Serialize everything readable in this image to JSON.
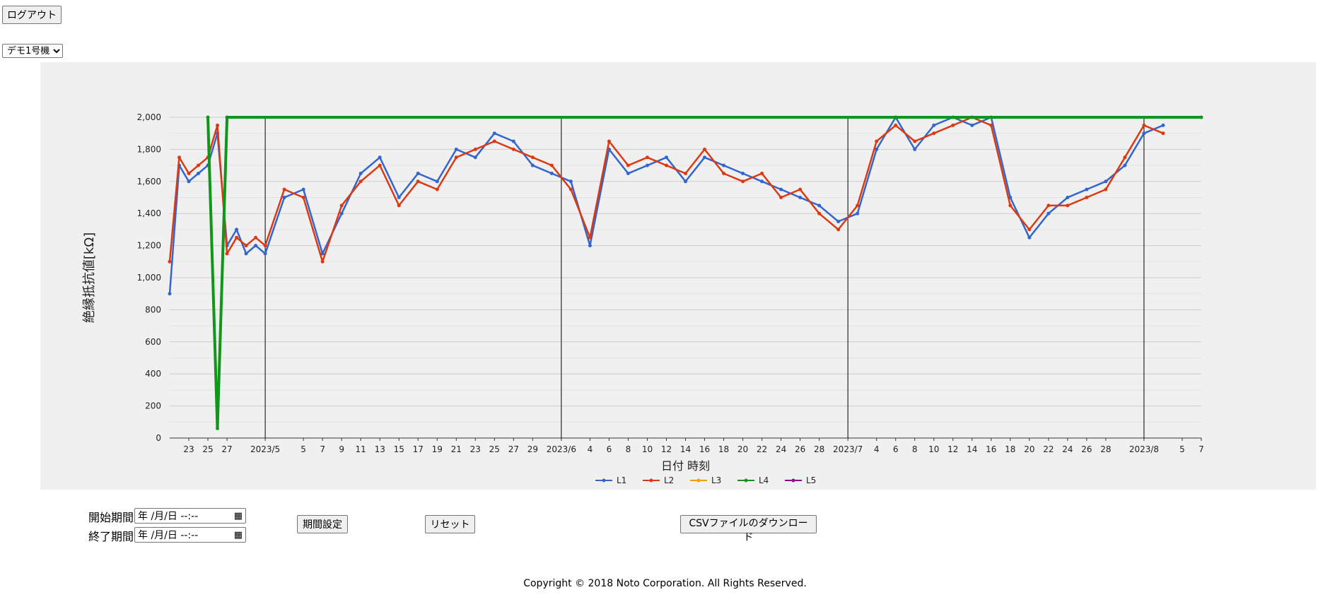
{
  "header": {
    "logout_label": "ログアウト"
  },
  "machine_select": {
    "selected": "デモ1号機"
  },
  "controls": {
    "start_label": "開始期間",
    "end_label": "終了期間",
    "datetime_placeholder": "年 /月/日 --:--",
    "set_period_label": "期間設定",
    "reset_label": "リセット",
    "csv_download_label": "CSVファイルのダウンロード"
  },
  "footer": {
    "copyright": "Copyright © 2018 Noto Corporation. All Rights Reserved."
  },
  "colors": {
    "L1": "#3366cc",
    "L2": "#dc3912",
    "L3": "#ff9900",
    "L4": "#109618",
    "L5": "#990099",
    "panel": "#f0f0f0"
  },
  "chart_data": {
    "type": "line",
    "xlabel": "日付 時刻",
    "ylabel": "絶縁抵抗値[kΩ]",
    "ylim": [
      0,
      2000
    ],
    "y_ticks": [
      "0",
      "200",
      "400",
      "600",
      "800",
      "1,000",
      "1,200",
      "1,400",
      "1,600",
      "1,800",
      "2,000"
    ],
    "x_range": [
      "2023-04-21",
      "2023-08-07"
    ],
    "x_tick_labels": [
      {
        "date": "2023-04-23",
        "label": "23"
      },
      {
        "date": "2023-04-25",
        "label": "25"
      },
      {
        "date": "2023-04-27",
        "label": "27"
      },
      {
        "date": "2023-05-01",
        "label": "2023/5"
      },
      {
        "date": "2023-05-05",
        "label": "5"
      },
      {
        "date": "2023-05-07",
        "label": "7"
      },
      {
        "date": "2023-05-09",
        "label": "9"
      },
      {
        "date": "2023-05-11",
        "label": "11"
      },
      {
        "date": "2023-05-13",
        "label": "13"
      },
      {
        "date": "2023-05-15",
        "label": "15"
      },
      {
        "date": "2023-05-17",
        "label": "17"
      },
      {
        "date": "2023-05-19",
        "label": "19"
      },
      {
        "date": "2023-05-21",
        "label": "21"
      },
      {
        "date": "2023-05-23",
        "label": "23"
      },
      {
        "date": "2023-05-25",
        "label": "25"
      },
      {
        "date": "2023-05-27",
        "label": "27"
      },
      {
        "date": "2023-05-29",
        "label": "29"
      },
      {
        "date": "2023-06-01",
        "label": "2023/6"
      },
      {
        "date": "2023-06-04",
        "label": "4"
      },
      {
        "date": "2023-06-06",
        "label": "6"
      },
      {
        "date": "2023-06-08",
        "label": "8"
      },
      {
        "date": "2023-06-10",
        "label": "10"
      },
      {
        "date": "2023-06-12",
        "label": "12"
      },
      {
        "date": "2023-06-14",
        "label": "14"
      },
      {
        "date": "2023-06-16",
        "label": "16"
      },
      {
        "date": "2023-06-18",
        "label": "18"
      },
      {
        "date": "2023-06-20",
        "label": "20"
      },
      {
        "date": "2023-06-22",
        "label": "22"
      },
      {
        "date": "2023-06-24",
        "label": "24"
      },
      {
        "date": "2023-06-26",
        "label": "26"
      },
      {
        "date": "2023-06-28",
        "label": "28"
      },
      {
        "date": "2023-07-01",
        "label": "2023/7"
      },
      {
        "date": "2023-07-04",
        "label": "4"
      },
      {
        "date": "2023-07-06",
        "label": "6"
      },
      {
        "date": "2023-07-08",
        "label": "8"
      },
      {
        "date": "2023-07-10",
        "label": "10"
      },
      {
        "date": "2023-07-12",
        "label": "12"
      },
      {
        "date": "2023-07-14",
        "label": "14"
      },
      {
        "date": "2023-07-16",
        "label": "16"
      },
      {
        "date": "2023-07-18",
        "label": "18"
      },
      {
        "date": "2023-07-20",
        "label": "20"
      },
      {
        "date": "2023-07-22",
        "label": "22"
      },
      {
        "date": "2023-07-24",
        "label": "24"
      },
      {
        "date": "2023-07-26",
        "label": "26"
      },
      {
        "date": "2023-07-28",
        "label": "28"
      },
      {
        "date": "2023-08-01",
        "label": "2023/8"
      },
      {
        "date": "2023-08-05",
        "label": "5"
      },
      {
        "date": "2023-08-07",
        "label": "7"
      }
    ],
    "month_lines": [
      "2023-05-01",
      "2023-06-01",
      "2023-07-01",
      "2023-08-01"
    ],
    "legend_position": "bottom",
    "grid": true,
    "series": [
      {
        "name": "L1",
        "color": "#3366cc",
        "dates": [
          "2023-04-21",
          "2023-04-22",
          "2023-04-23",
          "2023-04-24",
          "2023-04-25",
          "2023-04-26",
          "2023-04-27",
          "2023-04-28",
          "2023-04-29",
          "2023-04-30",
          "2023-05-01",
          "2023-05-03",
          "2023-05-05",
          "2023-05-07",
          "2023-05-09",
          "2023-05-11",
          "2023-05-13",
          "2023-05-15",
          "2023-05-17",
          "2023-05-19",
          "2023-05-21",
          "2023-05-23",
          "2023-05-25",
          "2023-05-27",
          "2023-05-29",
          "2023-05-31",
          "2023-06-02",
          "2023-06-04",
          "2023-06-06",
          "2023-06-08",
          "2023-06-10",
          "2023-06-12",
          "2023-06-14",
          "2023-06-16",
          "2023-06-18",
          "2023-06-20",
          "2023-06-22",
          "2023-06-24",
          "2023-06-26",
          "2023-06-28",
          "2023-06-30",
          "2023-07-02",
          "2023-07-04",
          "2023-07-06",
          "2023-07-08",
          "2023-07-10",
          "2023-07-12",
          "2023-07-14",
          "2023-07-16",
          "2023-07-18",
          "2023-07-20",
          "2023-07-22",
          "2023-07-24",
          "2023-07-26",
          "2023-07-28",
          "2023-07-30",
          "2023-08-01",
          "2023-08-03"
        ],
        "values": [
          900,
          1700,
          1600,
          1650,
          1700,
          1900,
          1200,
          1300,
          1150,
          1200,
          1150,
          1500,
          1550,
          1150,
          1400,
          1650,
          1750,
          1500,
          1650,
          1600,
          1800,
          1750,
          1900,
          1850,
          1700,
          1650,
          1600,
          1200,
          1800,
          1650,
          1700,
          1750,
          1600,
          1750,
          1700,
          1650,
          1600,
          1550,
          1500,
          1450,
          1350,
          1400,
          1800,
          2000,
          1800,
          1950,
          2000,
          1950,
          2000,
          1500,
          1250,
          1400,
          1500,
          1550,
          1600,
          1700,
          1900,
          1950
        ]
      },
      {
        "name": "L2",
        "color": "#dc3912",
        "dates": [
          "2023-04-21",
          "2023-04-22",
          "2023-04-23",
          "2023-04-24",
          "2023-04-25",
          "2023-04-26",
          "2023-04-27",
          "2023-04-28",
          "2023-04-29",
          "2023-04-30",
          "2023-05-01",
          "2023-05-03",
          "2023-05-05",
          "2023-05-07",
          "2023-05-09",
          "2023-05-11",
          "2023-05-13",
          "2023-05-15",
          "2023-05-17",
          "2023-05-19",
          "2023-05-21",
          "2023-05-23",
          "2023-05-25",
          "2023-05-27",
          "2023-05-29",
          "2023-05-31",
          "2023-06-02",
          "2023-06-04",
          "2023-06-06",
          "2023-06-08",
          "2023-06-10",
          "2023-06-12",
          "2023-06-14",
          "2023-06-16",
          "2023-06-18",
          "2023-06-20",
          "2023-06-22",
          "2023-06-24",
          "2023-06-26",
          "2023-06-28",
          "2023-06-30",
          "2023-07-02",
          "2023-07-04",
          "2023-07-06",
          "2023-07-08",
          "2023-07-10",
          "2023-07-12",
          "2023-07-14",
          "2023-07-16",
          "2023-07-18",
          "2023-07-20",
          "2023-07-22",
          "2023-07-24",
          "2023-07-26",
          "2023-07-28",
          "2023-07-30",
          "2023-08-01",
          "2023-08-03"
        ],
        "values": [
          1100,
          1750,
          1650,
          1700,
          1750,
          1950,
          1150,
          1250,
          1200,
          1250,
          1200,
          1550,
          1500,
          1100,
          1450,
          1600,
          1700,
          1450,
          1600,
          1550,
          1750,
          1800,
          1850,
          1800,
          1750,
          1700,
          1550,
          1250,
          1850,
          1700,
          1750,
          1700,
          1650,
          1800,
          1650,
          1600,
          1650,
          1500,
          1550,
          1400,
          1300,
          1450,
          1850,
          1950,
          1850,
          1900,
          1950,
          2000,
          1950,
          1450,
          1300,
          1450,
          1450,
          1500,
          1550,
          1750,
          1950,
          1900
        ]
      },
      {
        "name": "L3",
        "color": "#ff9900",
        "dates": [],
        "values": []
      },
      {
        "name": "L4",
        "color": "#109618",
        "dates": [
          "2023-04-25",
          "2023-04-26",
          "2023-04-27",
          "2023-08-07"
        ],
        "values": [
          2000,
          60,
          2000,
          2000
        ]
      },
      {
        "name": "L5",
        "color": "#990099",
        "dates": [],
        "values": []
      }
    ]
  }
}
